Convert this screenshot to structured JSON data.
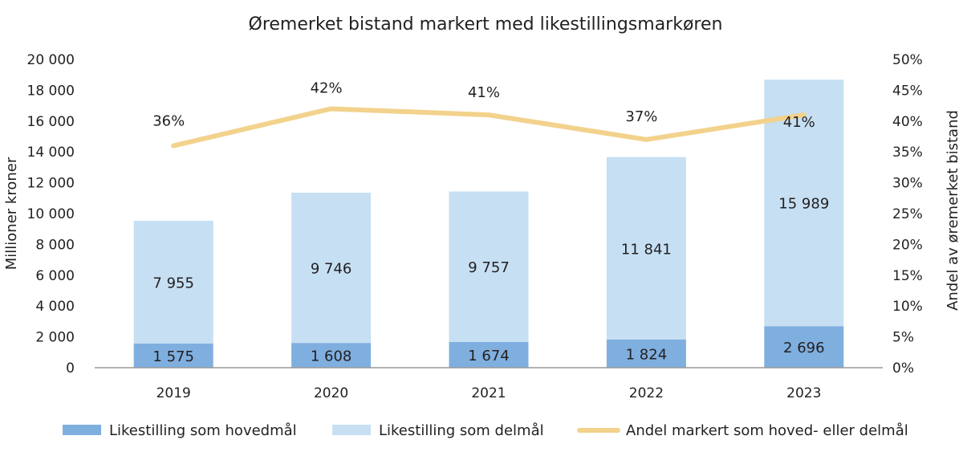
{
  "chart_data": {
    "type": "bar",
    "stacked": true,
    "title": "Øremerket bistand markert med likestillingsmarkøren",
    "categories": [
      "2019",
      "2020",
      "2021",
      "2022",
      "2023"
    ],
    "ylabel": "Millioner kroner",
    "y2label": "Andel av øremerket bistand",
    "ylim": [
      0,
      20000
    ],
    "y2lim": [
      0,
      50
    ],
    "yticks": [
      "0",
      "2 000",
      "4 000",
      "6 000",
      "8 000",
      "10 000",
      "12 000",
      "14 000",
      "16 000",
      "18 000",
      "20 000"
    ],
    "y2ticks": [
      "0%",
      "5%",
      "10%",
      "15%",
      "20%",
      "25%",
      "30%",
      "35%",
      "40%",
      "45%",
      "50%"
    ],
    "grid": false,
    "legend_position": "bottom",
    "series": [
      {
        "name": "Likestilling som hovedmål",
        "type": "bar",
        "color": "#7fafdf",
        "values": [
          1575,
          1608,
          1674,
          1824,
          2696
        ],
        "labels": [
          "1 575",
          "1 608",
          "1 674",
          "1 824",
          "2 696"
        ]
      },
      {
        "name": "Likestilling som delmål",
        "type": "bar",
        "color": "#c6dff3",
        "values": [
          7955,
          9746,
          9757,
          11841,
          15989
        ],
        "labels": [
          "7 955",
          "9 746",
          "9 757",
          "11 841",
          "15 989"
        ]
      },
      {
        "name": "Andel markert som hoved- eller delmål",
        "type": "line",
        "axis": "right",
        "color": "#f2d28c",
        "values": [
          36,
          42,
          41,
          37,
          41
        ],
        "labels": [
          "36%",
          "42%",
          "41%",
          "37%",
          "41%"
        ]
      }
    ]
  }
}
